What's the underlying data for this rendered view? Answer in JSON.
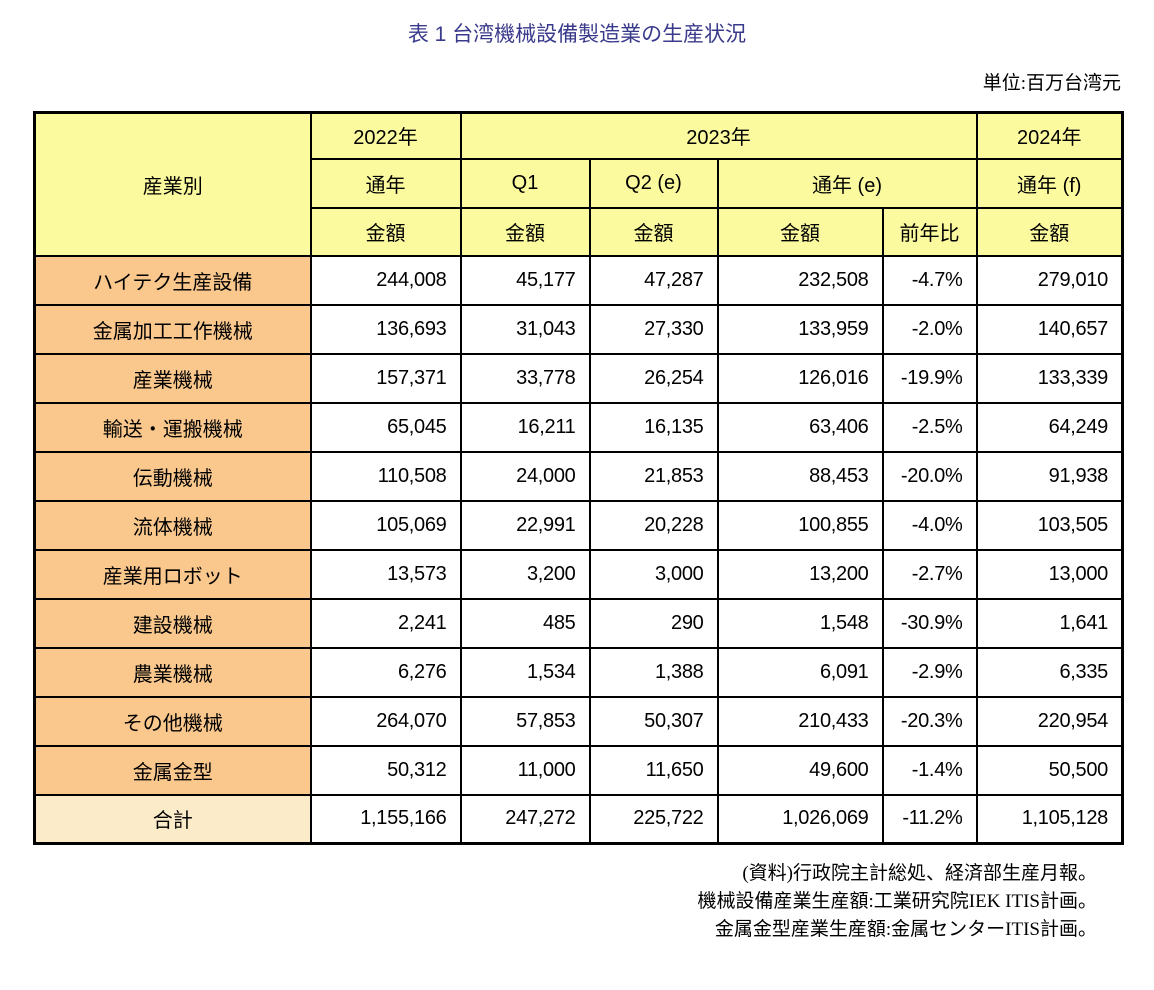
{
  "title": "表 1 台湾機械設備製造業の生産状況",
  "unit_note": "単位:百万台湾元",
  "table": {
    "header": {
      "industry": "産業別",
      "y2022": "2022年",
      "y2023": "2023年",
      "y2024": "2024年",
      "periods": [
        "通年",
        "Q1",
        "Q2 (e)",
        "通年 (e)",
        "通年 (f)"
      ],
      "measures": [
        "金額",
        "金額",
        "金額",
        "金額",
        "前年比",
        "金額"
      ]
    },
    "rows": [
      [
        "ハイテク生産設備",
        "244,008",
        "45,177",
        "47,287",
        "232,508",
        "-4.7%",
        "279,010"
      ],
      [
        "金属加工工作機械",
        "136,693",
        "31,043",
        "27,330",
        "133,959",
        "-2.0%",
        "140,657"
      ],
      [
        "産業機械",
        "157,371",
        "33,778",
        "26,254",
        "126,016",
        "-19.9%",
        "133,339"
      ],
      [
        "輸送・運搬機械",
        "65,045",
        "16,211",
        "16,135",
        "63,406",
        "-2.5%",
        "64,249"
      ],
      [
        "伝動機械",
        "110,508",
        "24,000",
        "21,853",
        "88,453",
        "-20.0%",
        "91,938"
      ],
      [
        "流体機械",
        "105,069",
        "22,991",
        "20,228",
        "100,855",
        "-4.0%",
        "103,505"
      ],
      [
        "産業用ロボット",
        "13,573",
        "3,200",
        "3,000",
        "13,200",
        "-2.7%",
        "13,000"
      ],
      [
        "建設機械",
        "2,241",
        "485",
        "290",
        "1,548",
        "-30.9%",
        "1,641"
      ],
      [
        "農業機械",
        "6,276",
        "1,534",
        "1,388",
        "6,091",
        "-2.9%",
        "6,335"
      ],
      [
        "その他機械",
        "264,070",
        "57,853",
        "50,307",
        "210,433",
        "-20.3%",
        "220,954"
      ],
      [
        "金属金型",
        "50,312",
        "11,000",
        "11,650",
        "49,600",
        "-1.4%",
        "50,500"
      ]
    ],
    "total": [
      "合計",
      "1,155,166",
      "247,272",
      "225,722",
      "1,026,069",
      "-11.2%",
      "1,105,128"
    ]
  },
  "footnotes": [
    "(資料)行政院主計総処、経済部生産月報。",
    "機械設備産業生産額:工業研究院IEK ITIS計画。",
    "金属金型産業生産額:金属センターITIS計画。"
  ],
  "colors": {
    "title_text": "#3A3A8C",
    "header_bg": "#FBFA9E",
    "row_label_bg": "#FAC88D",
    "total_label_bg": "#FCEBC9",
    "border": "#000000"
  }
}
